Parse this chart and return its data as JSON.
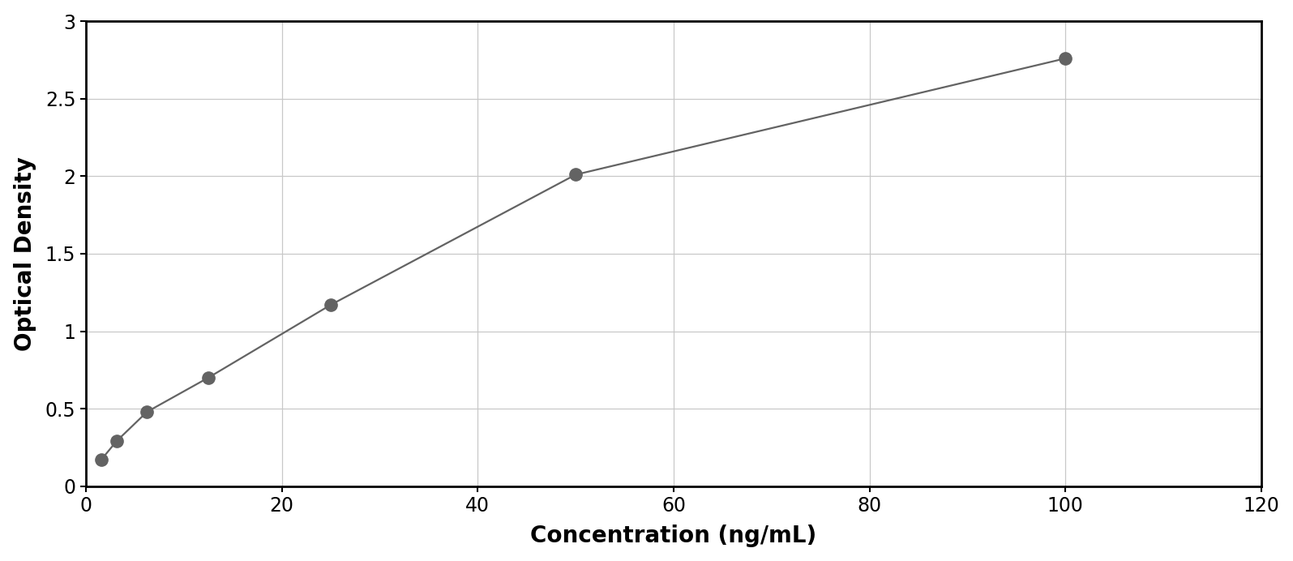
{
  "x_data": [
    1.5625,
    3.125,
    6.25,
    12.5,
    25,
    50,
    100
  ],
  "y_data": [
    0.17,
    0.29,
    0.48,
    0.7,
    1.17,
    2.01,
    2.76
  ],
  "line_color": "#636363",
  "marker_color": "#636363",
  "marker_size": 11,
  "line_width": 1.6,
  "xlabel": "Concentration (ng/mL)",
  "ylabel": "Optical Density",
  "xlim": [
    0,
    120
  ],
  "ylim": [
    0,
    3
  ],
  "xticks": [
    0,
    20,
    40,
    60,
    80,
    100,
    120
  ],
  "yticks": [
    0,
    0.5,
    1.0,
    1.5,
    2.0,
    2.5,
    3.0
  ],
  "ytick_labels": [
    "0",
    "0.5",
    "1",
    "1.5",
    "2",
    "2.5",
    "3"
  ],
  "xlabel_fontsize": 20,
  "ylabel_fontsize": 20,
  "tick_fontsize": 17,
  "grid_color": "#c8c8c8",
  "plot_bg": "#ffffff",
  "figure_bg": "#ffffff",
  "border_color": "#000000",
  "spine_linewidth": 2.0,
  "curve_x_start": 0.5,
  "curve_x_end": 108
}
